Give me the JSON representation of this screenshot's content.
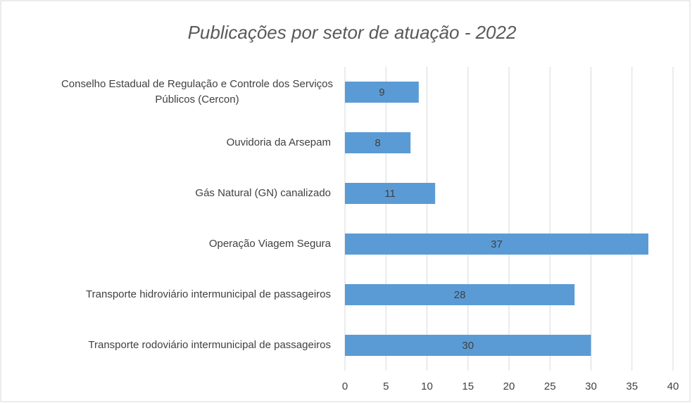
{
  "chart_data": {
    "type": "bar",
    "orientation": "horizontal",
    "title": "Publicações por setor de atuação - 2022",
    "categories": [
      "Conselho Estadual de Regulação e Controle dos Serviços Públicos (Cercon)",
      "Ouvidoria da Arsepam",
      "Gás Natural (GN) canalizado",
      "Operação Viagem Segura",
      "Transporte hidroviário intermunicipal de passageiros",
      "Transporte rodoviário intermunicipal de passageiros"
    ],
    "values": [
      9,
      8,
      11,
      37,
      28,
      30
    ],
    "color": "#5b9bd5",
    "xlim": [
      0,
      40
    ],
    "xticks": [
      0,
      5,
      10,
      15,
      20,
      25,
      30,
      35,
      40
    ],
    "grid": true
  }
}
